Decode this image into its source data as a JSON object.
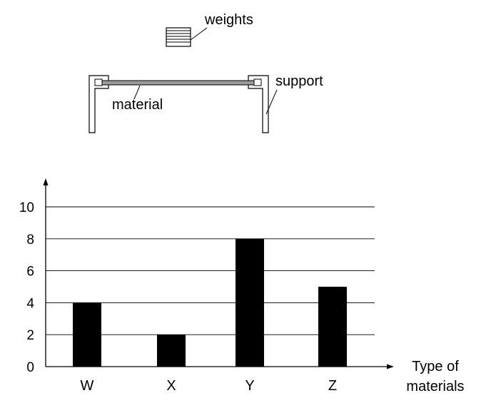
{
  "diagram": {
    "labels": {
      "weights": "weights",
      "material": "material",
      "support": "support"
    }
  },
  "chart_data": {
    "type": "bar",
    "categories": [
      "W",
      "X",
      "Y",
      "Z"
    ],
    "values": [
      4,
      2,
      8,
      5
    ],
    "title": "",
    "xlabel_lines": [
      "Type of",
      "materials"
    ],
    "ylabel": "",
    "ylim": [
      0,
      10
    ],
    "yticks": [
      "0",
      "2",
      "4",
      "6",
      "8",
      "10"
    ],
    "grid": true,
    "bar_color": "#000000"
  }
}
